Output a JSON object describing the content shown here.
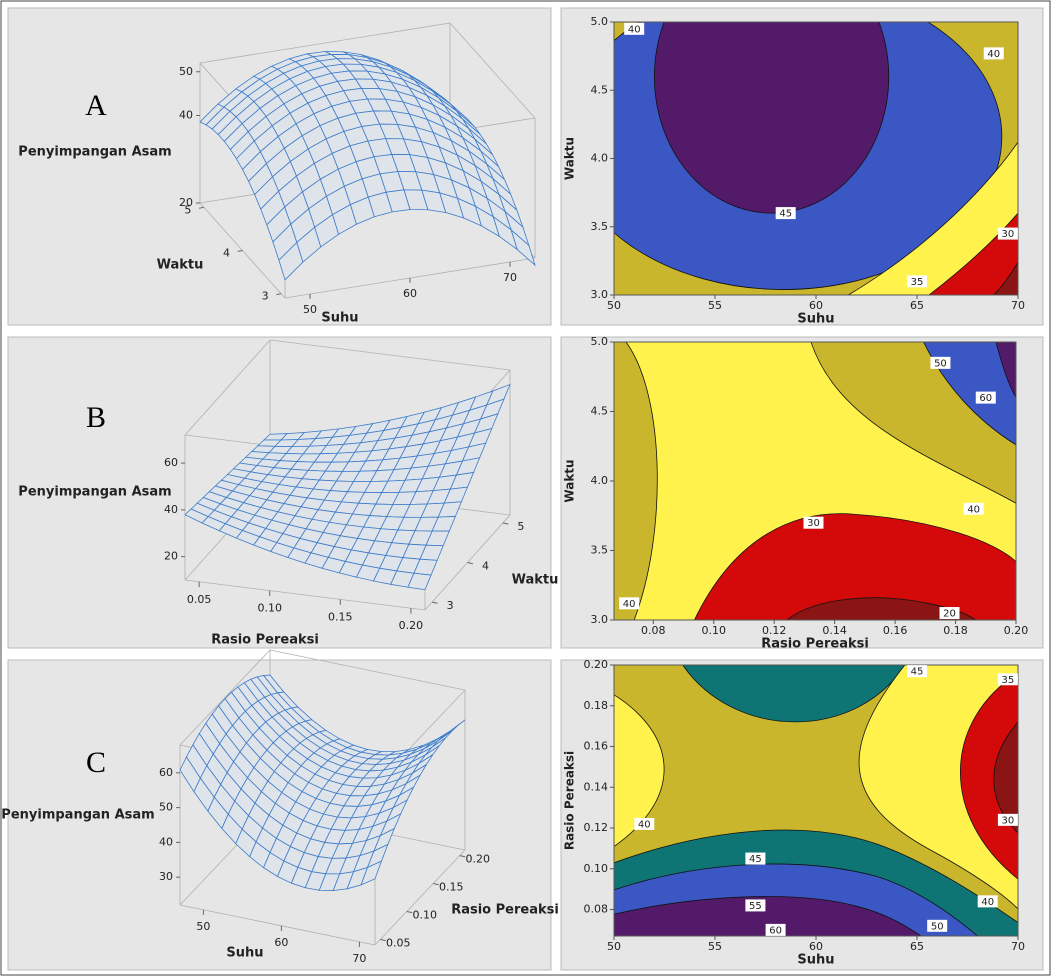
{
  "chart_data": [
    {
      "type": "surface",
      "panel_label": "A",
      "zlabel": "Penyimpangan Asam",
      "ylabel": "Waktu",
      "xlabel": "Suhu",
      "xlim": [
        47.5,
        72.5
      ],
      "xticks": [
        50,
        60,
        70
      ],
      "ylim": [
        2.9,
        5.1
      ],
      "yticks": [
        3,
        4,
        5
      ],
      "zlim": [
        20,
        52
      ],
      "zticks": [
        20,
        40,
        50
      ]
    },
    {
      "type": "contour",
      "xlabel": "Suhu",
      "ylabel": "Waktu",
      "xlim": [
        50,
        70
      ],
      "xticks": [
        50,
        55,
        60,
        65,
        70
      ],
      "ylim": [
        3,
        5
      ],
      "yticks": [
        {
          "value": 3,
          "label": "3.0"
        },
        3.5,
        {
          "value": 4,
          "label": "4.0"
        },
        4.5,
        {
          "value": 5,
          "label": "5.0"
        }
      ],
      "contour_labels": [
        {
          "value": 40,
          "x": 51,
          "y": 4.95
        },
        {
          "value": 40,
          "x": 68.8,
          "y": 4.77
        },
        {
          "value": 45,
          "x": 58.5,
          "y": 3.6
        },
        {
          "value": 30,
          "x": 69.5,
          "y": 3.45
        },
        {
          "value": 35,
          "x": 65,
          "y": 3.1
        }
      ]
    },
    {
      "type": "surface",
      "panel_label": "B",
      "zlabel": "Penyimpangan Asam",
      "ylabel": "Waktu",
      "xlabel": "Rasio Pereaksi",
      "xlim": [
        0.04,
        0.21
      ],
      "xticks": [
        0.05,
        {
          "value": 0.1,
          "label": "0.10"
        },
        0.15,
        {
          "value": 0.2,
          "label": "0.20"
        }
      ],
      "ylim": [
        2.8,
        5.2
      ],
      "yticks": [
        3,
        4,
        5
      ],
      "zlim": [
        10,
        72
      ],
      "zticks": [
        20,
        40,
        60
      ]
    },
    {
      "type": "contour",
      "xlabel": "Rasio Pereaksi",
      "ylabel": "Waktu",
      "xlim": [
        0.067,
        0.2
      ],
      "xticks": [
        0.08,
        {
          "value": 0.1,
          "label": "0.10"
        },
        0.12,
        0.14,
        0.16,
        0.18,
        {
          "value": 0.2,
          "label": "0.20"
        }
      ],
      "ylim": [
        3,
        5
      ],
      "yticks": [
        {
          "value": 3,
          "label": "3.0"
        },
        3.5,
        {
          "value": 4,
          "label": "4.0"
        },
        4.5,
        {
          "value": 5,
          "label": "5.0"
        }
      ],
      "contour_labels": [
        {
          "value": 50,
          "x": 0.175,
          "y": 4.85
        },
        {
          "value": 60,
          "x": 0.19,
          "y": 4.6
        },
        {
          "value": 40,
          "x": 0.186,
          "y": 3.8
        },
        {
          "value": 30,
          "x": 0.133,
          "y": 3.7
        },
        {
          "value": 40,
          "x": 0.072,
          "y": 3.12
        },
        {
          "value": 20,
          "x": 0.178,
          "y": 3.05
        }
      ]
    },
    {
      "type": "surface",
      "panel_label": "C",
      "zlabel": "Penyimpangan Asam",
      "ylabel": "Rasio Pereaksi",
      "xlabel": "Suhu",
      "xlim": [
        47,
        72
      ],
      "xticks": [
        50,
        60,
        70
      ],
      "ylim": [
        0.04,
        0.21
      ],
      "yticks": [
        0.05,
        {
          "value": 0.1,
          "label": "0.10"
        },
        0.15,
        {
          "value": 0.2,
          "label": "0.20"
        }
      ],
      "zlim": [
        22,
        68
      ],
      "zticks": [
        30,
        40,
        50,
        60
      ]
    },
    {
      "type": "contour",
      "xlabel": "Suhu",
      "ylabel": "Rasio Pereaksi",
      "xlim": [
        50,
        70
      ],
      "xticks": [
        50,
        55,
        60,
        65,
        70
      ],
      "ylim": [
        0.067,
        0.2
      ],
      "yticks": [
        0.08,
        {
          "value": 0.1,
          "label": "0.10"
        },
        0.12,
        0.14,
        0.16,
        0.18,
        {
          "value": 0.2,
          "label": "0.20"
        }
      ],
      "contour_labels": [
        {
          "value": 45,
          "x": 65,
          "y": 0.197
        },
        {
          "value": 35,
          "x": 69.5,
          "y": 0.193
        },
        {
          "value": 40,
          "x": 51.5,
          "y": 0.122
        },
        {
          "value": 45,
          "x": 57,
          "y": 0.105
        },
        {
          "value": 30,
          "x": 69.5,
          "y": 0.124
        },
        {
          "value": 40,
          "x": 68.5,
          "y": 0.084
        },
        {
          "value": 55,
          "x": 57,
          "y": 0.082
        },
        {
          "value": 50,
          "x": 66,
          "y": 0.072
        },
        {
          "value": 60,
          "x": 58,
          "y": 0.07
        }
      ]
    }
  ]
}
